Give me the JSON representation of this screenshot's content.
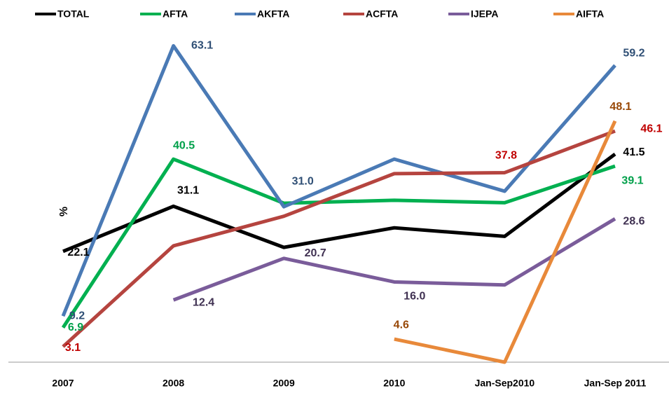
{
  "chart_data": {
    "type": "line",
    "y_axis_label": "%",
    "categories": [
      "2007",
      "2008",
      "2009",
      "2010",
      "Jan-Sep2010",
      "Jan-Sep 2011"
    ],
    "ylim": [
      0,
      70
    ],
    "series": [
      {
        "name": "TOTAL",
        "color": "#000000",
        "label_color": "#000000",
        "values": [
          22.1,
          31.1,
          22.9,
          26.8,
          25.1,
          41.5
        ],
        "value_labels": [
          "22.1",
          "31.1",
          null,
          null,
          null,
          "41.5"
        ]
      },
      {
        "name": "AFTA",
        "color": "#00b050",
        "label_color": "#00a04a",
        "values": [
          6.9,
          40.5,
          31.7,
          32.3,
          31.8,
          39.1
        ],
        "value_labels": [
          "6.9",
          "40.5",
          null,
          null,
          null,
          "39.1"
        ]
      },
      {
        "name": "AKFTA",
        "color": "#4a7ab5",
        "label_color": "#2f4f75",
        "values": [
          9.2,
          63.1,
          31.0,
          40.5,
          34.1,
          59.2
        ],
        "value_labels": [
          "9.2",
          "63.1",
          "31.0",
          null,
          null,
          "59.2"
        ]
      },
      {
        "name": "ACFTA",
        "color": "#b5443f",
        "label_color": "#c00000",
        "values": [
          3.1,
          23.2,
          29.1,
          37.6,
          37.8,
          46.1
        ],
        "value_labels": [
          "3.1",
          null,
          null,
          null,
          "37.8",
          "46.1"
        ]
      },
      {
        "name": "IJEPA",
        "color": "#7a5c9a",
        "label_color": "#403152",
        "values": [
          null,
          12.4,
          20.7,
          16.0,
          15.4,
          28.6
        ],
        "value_labels": [
          null,
          "12.4",
          "20.7",
          "16.0",
          null,
          "28.6"
        ]
      },
      {
        "name": "AIFTA",
        "color": "#e8893a",
        "label_color": "#984807",
        "values": [
          null,
          null,
          null,
          4.6,
          0.0,
          48.1
        ],
        "value_labels": [
          null,
          null,
          null,
          "4.6",
          null,
          "48.1"
        ]
      }
    ]
  }
}
